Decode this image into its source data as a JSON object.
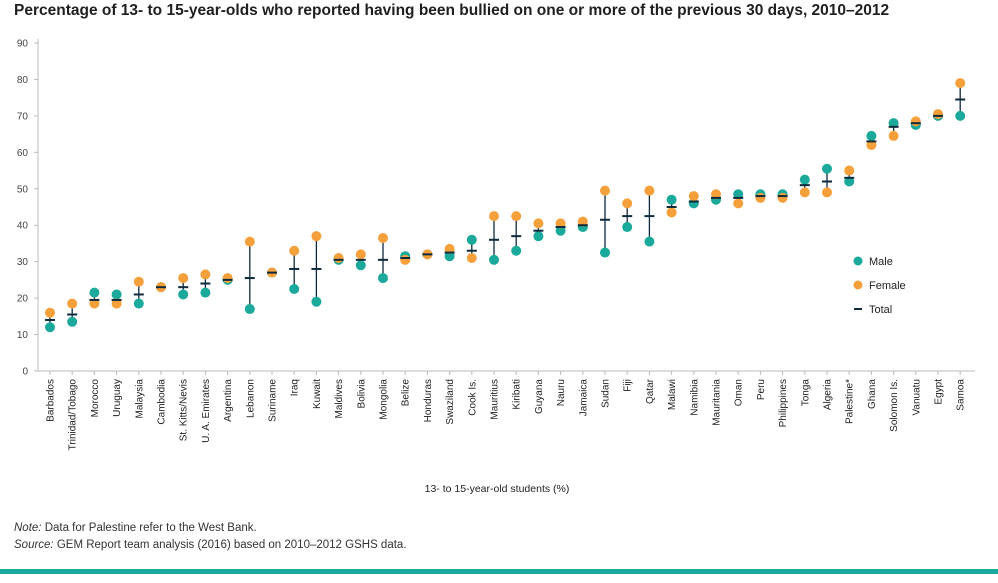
{
  "chart_data": {
    "type": "scatter",
    "title": "Percentage of 13- to 15-year-olds who reported having been bullied on one or more of the previous 30 days, 2010–2012",
    "xlabel": "13- to 15-year-old students (%)",
    "ylabel": "",
    "ylim": [
      0,
      90
    ],
    "yticks": [
      0,
      10,
      20,
      30,
      40,
      50,
      60,
      70,
      80,
      90
    ],
    "grid": false,
    "legend_position": "right",
    "categories": [
      "Barbados",
      "Trinidad/Tobago",
      "Morocco",
      "Uruguay",
      "Malaysia",
      "Cambodia",
      "St. Kitts/Nevis",
      "U. A. Emirates",
      "Argentina",
      "Lebanon",
      "Suriname",
      "Iraq",
      "Kuwait",
      "Maldives",
      "Bolivia",
      "Mongolia",
      "Belize",
      "Honduras",
      "Swaziland",
      "Cook Is.",
      "Mauritius",
      "Kiribati",
      "Guyana",
      "Nauru",
      "Jamaica",
      "Sudan",
      "Fiji",
      "Qatar",
      "Malawi",
      "Namibia",
      "Mauritania",
      "Oman",
      "Peru",
      "Philippines",
      "Tonga",
      "Algeria",
      "Palestine*",
      "Ghana",
      "Solomon Is.",
      "Vanuatu",
      "Egypt",
      "Samoa"
    ],
    "series": [
      {
        "name": "Male",
        "color": "#1aa99a",
        "marker": "circle",
        "values": [
          12,
          13.5,
          21.5,
          21,
          18.5,
          23,
          21,
          21.5,
          25,
          17,
          27,
          22.5,
          19,
          30.5,
          29,
          25.5,
          31.5,
          32,
          31.5,
          36,
          30.5,
          33,
          37,
          38.5,
          39.5,
          32.5,
          39.5,
          35.5,
          47,
          46,
          47,
          48.5,
          48.5,
          48.5,
          52.5,
          55.5,
          52,
          64.5,
          68,
          67.5,
          70,
          70
        ]
      },
      {
        "name": "Female",
        "color": "#f5a03a",
        "marker": "circle",
        "values": [
          16,
          18.5,
          18.5,
          18.5,
          24.5,
          23,
          25.5,
          26.5,
          25.5,
          35.5,
          27,
          33,
          37,
          31,
          32,
          36.5,
          30.5,
          32,
          33.5,
          31,
          42.5,
          42.5,
          40.5,
          40.5,
          41,
          49.5,
          46,
          49.5,
          43.5,
          48,
          48.5,
          46,
          47.5,
          47.5,
          49,
          49,
          55,
          62,
          64.5,
          68.5,
          70.5,
          79
        ]
      },
      {
        "name": "Total",
        "color": "#0e2a3d",
        "marker": "dash",
        "values": [
          14,
          15.5,
          19.5,
          19.5,
          21,
          23,
          23,
          24,
          25,
          25.5,
          27,
          28,
          28,
          30.5,
          30.5,
          30.5,
          31,
          32,
          32.5,
          33,
          36,
          37,
          38.5,
          39.5,
          40,
          41.5,
          42.5,
          42.5,
          45,
          46.5,
          47.5,
          47.5,
          48,
          48,
          51,
          52,
          53,
          63,
          67,
          68,
          70,
          74.5
        ]
      }
    ]
  },
  "notes": {
    "note_label": "Note:",
    "note_text": " Data for Palestine refer to the West Bank.",
    "source_label": "Source:",
    "source_text": " GEM Report team analysis (2016) based on 2010–2012 GSHS data."
  }
}
